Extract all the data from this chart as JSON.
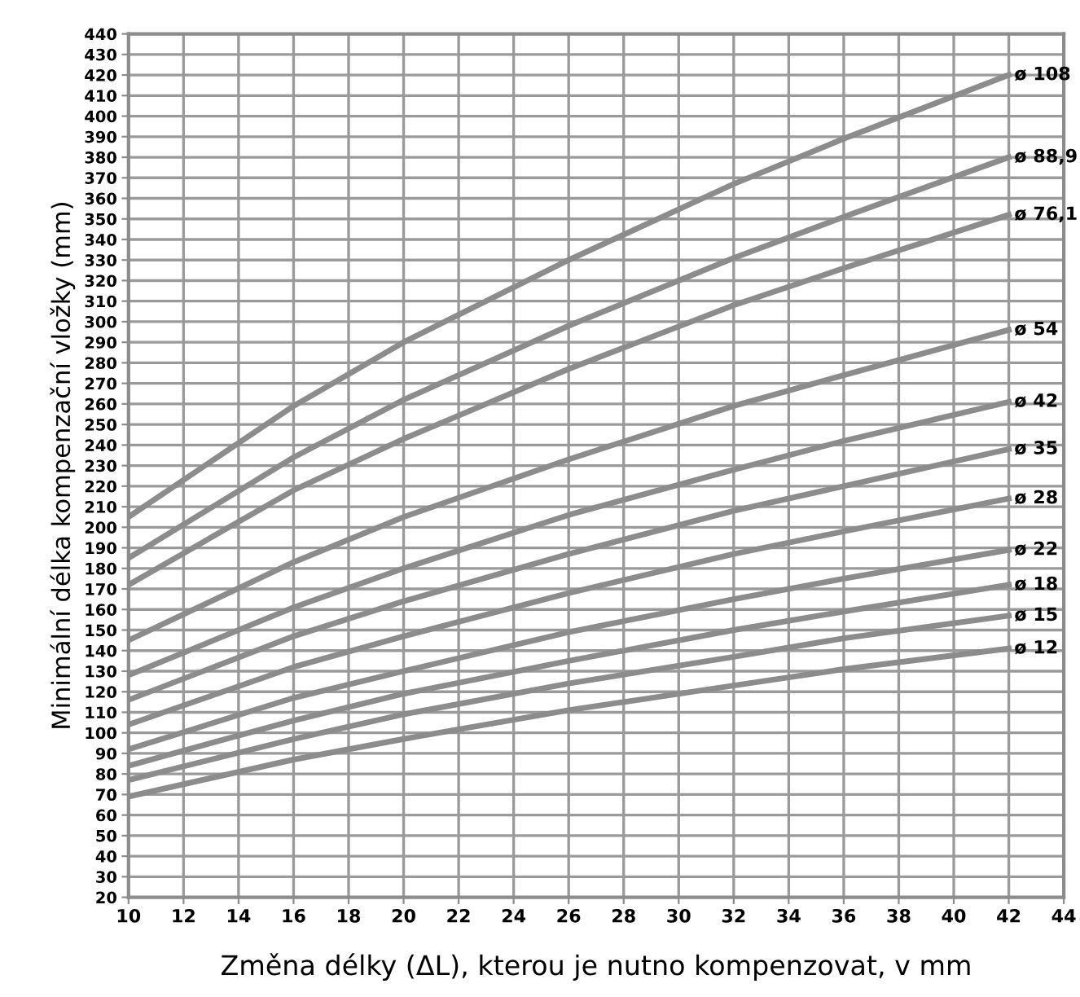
{
  "chart_data": {
    "type": "line",
    "xlabel": "Změna délky (ΔL), kterou je nutno kompenzovat, v mm",
    "ylabel": "Minimální délka kompenzační vložky (mm)",
    "x": [
      10,
      16,
      20,
      26,
      32,
      36,
      42
    ],
    "series": [
      {
        "name": "ø 108",
        "color": "#8c8c8c",
        "values": [
          205,
          259,
          290,
          330,
          367,
          389,
          420
        ]
      },
      {
        "name": "ø 88,9",
        "color": "#8c8c8c",
        "values": [
          185,
          234,
          262,
          298,
          331,
          351,
          380
        ]
      },
      {
        "name": "ø 76,1",
        "color": "#8c8c8c",
        "values": [
          172,
          218,
          243,
          277,
          308,
          326,
          352
        ]
      },
      {
        "name": "ø 54",
        "color": "#8c8c8c",
        "values": [
          145,
          183,
          205,
          233,
          259,
          274,
          296
        ]
      },
      {
        "name": "ø 42",
        "color": "#8c8c8c",
        "values": [
          128,
          161,
          180,
          206,
          228,
          242,
          261
        ]
      },
      {
        "name": "ø 35",
        "color": "#8c8c8c",
        "values": [
          116,
          147,
          164,
          187,
          208,
          220,
          238
        ]
      },
      {
        "name": "ø 28",
        "color": "#8c8c8c",
        "values": [
          104,
          132,
          147,
          168,
          187,
          198,
          214
        ]
      },
      {
        "name": "ø 22",
        "color": "#8c8c8c",
        "values": [
          92,
          117,
          130,
          149,
          165,
          175,
          189
        ]
      },
      {
        "name": "ø 18",
        "color": "#8c8c8c",
        "values": [
          84,
          106,
          119,
          135,
          150,
          159,
          172
        ]
      },
      {
        "name": "ø 15",
        "color": "#8c8c8c",
        "values": [
          77,
          97,
          109,
          124,
          137,
          146,
          157
        ]
      },
      {
        "name": "ø 12",
        "color": "#8c8c8c",
        "values": [
          69,
          87,
          97,
          111,
          123,
          131,
          141
        ]
      }
    ],
    "xlim": [
      10,
      44
    ],
    "xticks": [
      10,
      12,
      14,
      16,
      18,
      20,
      22,
      24,
      26,
      28,
      30,
      32,
      34,
      36,
      38,
      40,
      42,
      44
    ],
    "ylim": [
      20,
      440
    ],
    "yticks": [
      20,
      30,
      40,
      50,
      60,
      70,
      80,
      90,
      100,
      110,
      120,
      130,
      140,
      150,
      160,
      170,
      180,
      190,
      200,
      210,
      220,
      230,
      240,
      250,
      260,
      270,
      280,
      290,
      300,
      310,
      320,
      330,
      340,
      350,
      360,
      370,
      380,
      390,
      400,
      410,
      420,
      430,
      440
    ],
    "grid": true,
    "legend": false,
    "marker": "none",
    "line_style": "solid"
  }
}
